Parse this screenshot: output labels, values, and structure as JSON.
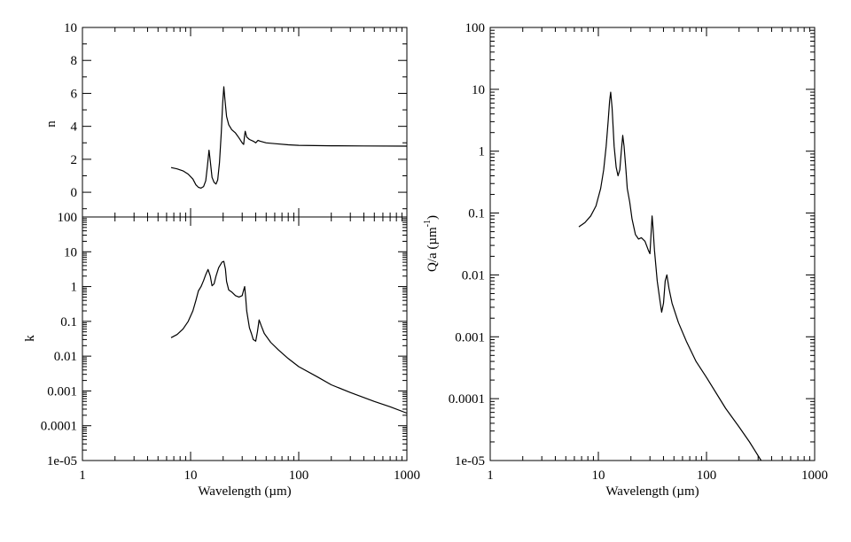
{
  "colors": {
    "background": "#ffffff",
    "line": "#000000",
    "frame": "#000000"
  },
  "chart_data": [
    {
      "id": "n-panel",
      "type": "line",
      "title": "",
      "xlabel": "",
      "ylabel": "n",
      "x_scale": "log",
      "y_scale": "linear",
      "xlim": [
        1,
        1000
      ],
      "ylim": [
        -1.5,
        10
      ],
      "y_ticks": [
        {
          "v": 0,
          "label": "0"
        },
        {
          "v": 2,
          "label": "2"
        },
        {
          "v": 4,
          "label": "4"
        },
        {
          "v": 6,
          "label": "6"
        },
        {
          "v": 8,
          "label": "8"
        },
        {
          "v": 10,
          "label": "10"
        }
      ],
      "x_ticks": [],
      "grid": false,
      "series": [
        {
          "points": [
            [
              6.6,
              1.5
            ],
            [
              7.5,
              1.42
            ],
            [
              8.5,
              1.3
            ],
            [
              9.5,
              1.1
            ],
            [
              10.5,
              0.8
            ],
            [
              11.2,
              0.45
            ],
            [
              11.8,
              0.3
            ],
            [
              12.5,
              0.25
            ],
            [
              13.2,
              0.35
            ],
            [
              13.8,
              0.7
            ],
            [
              14.3,
              1.6
            ],
            [
              14.8,
              2.55
            ],
            [
              15.2,
              1.9
            ],
            [
              15.8,
              0.9
            ],
            [
              16.5,
              0.6
            ],
            [
              17.2,
              0.5
            ],
            [
              17.8,
              0.75
            ],
            [
              18.5,
              1.8
            ],
            [
              19.2,
              3.6
            ],
            [
              19.8,
              5.4
            ],
            [
              20.3,
              6.4
            ],
            [
              20.8,
              5.6
            ],
            [
              21.5,
              4.6
            ],
            [
              22.5,
              4.1
            ],
            [
              24,
              3.8
            ],
            [
              26,
              3.6
            ],
            [
              28,
              3.3
            ],
            [
              30,
              3.0
            ],
            [
              31,
              2.9
            ],
            [
              31.5,
              3.4
            ],
            [
              32,
              3.7
            ],
            [
              33,
              3.35
            ],
            [
              35,
              3.2
            ],
            [
              38,
              3.1
            ],
            [
              40,
              3.0
            ],
            [
              42,
              3.15
            ],
            [
              44,
              3.1
            ],
            [
              50,
              3.0
            ],
            [
              60,
              2.95
            ],
            [
              80,
              2.88
            ],
            [
              100,
              2.85
            ],
            [
              200,
              2.82
            ],
            [
              400,
              2.81
            ],
            [
              1000,
              2.8
            ]
          ]
        }
      ]
    },
    {
      "id": "k-panel",
      "type": "line",
      "title": "",
      "xlabel": "Wavelength (µm)",
      "ylabel": "k",
      "x_scale": "log",
      "y_scale": "log",
      "xlim": [
        1,
        1000
      ],
      "ylim": [
        1e-05,
        100
      ],
      "y_ticks": [
        {
          "v": 1e-05,
          "label": "1e-05"
        },
        {
          "v": 0.0001,
          "label": "0.0001"
        },
        {
          "v": 0.001,
          "label": "0.001"
        },
        {
          "v": 0.01,
          "label": "0.01"
        },
        {
          "v": 0.1,
          "label": "0.1"
        },
        {
          "v": 1,
          "label": "1"
        },
        {
          "v": 10,
          "label": "10"
        },
        {
          "v": 100,
          "label": "100"
        }
      ],
      "x_ticks": [
        {
          "v": 1,
          "label": "1"
        },
        {
          "v": 10,
          "label": "10"
        },
        {
          "v": 100,
          "label": "100"
        },
        {
          "v": 1000,
          "label": "1000"
        }
      ],
      "grid": false,
      "series": [
        {
          "points": [
            [
              6.6,
              0.034
            ],
            [
              7.5,
              0.042
            ],
            [
              8.5,
              0.06
            ],
            [
              9.5,
              0.1
            ],
            [
              10.5,
              0.2
            ],
            [
              11.2,
              0.4
            ],
            [
              11.8,
              0.75
            ],
            [
              12.5,
              1.0
            ],
            [
              13.2,
              1.5
            ],
            [
              13.8,
              2.2
            ],
            [
              14.5,
              3.1
            ],
            [
              15.2,
              2.0
            ],
            [
              15.8,
              1.05
            ],
            [
              16.5,
              1.2
            ],
            [
              17.2,
              2.0
            ],
            [
              18.2,
              3.5
            ],
            [
              19.5,
              5.0
            ],
            [
              20.3,
              5.3
            ],
            [
              21,
              3.2
            ],
            [
              21.5,
              1.4
            ],
            [
              22.5,
              0.8
            ],
            [
              24,
              0.7
            ],
            [
              26,
              0.55
            ],
            [
              28,
              0.5
            ],
            [
              30,
              0.55
            ],
            [
              31,
              0.8
            ],
            [
              31.6,
              1.0
            ],
            [
              32.3,
              0.5
            ],
            [
              33,
              0.2
            ],
            [
              35,
              0.065
            ],
            [
              36.5,
              0.045
            ],
            [
              38,
              0.03
            ],
            [
              40,
              0.027
            ],
            [
              41.5,
              0.05
            ],
            [
              43,
              0.11
            ],
            [
              45,
              0.075
            ],
            [
              48,
              0.045
            ],
            [
              55,
              0.025
            ],
            [
              65,
              0.015
            ],
            [
              80,
              0.0085
            ],
            [
              100,
              0.005
            ],
            [
              150,
              0.0025
            ],
            [
              200,
              0.0015
            ],
            [
              300,
              0.0009
            ],
            [
              500,
              0.0005
            ],
            [
              700,
              0.00035
            ],
            [
              1000,
              0.00023
            ]
          ]
        }
      ]
    },
    {
      "id": "q-panel",
      "type": "line",
      "title": "",
      "xlabel": "Wavelength (µm)",
      "ylabel": "Q/a (µm",
      "ylabel_sup": "-1",
      "ylabel_close": ")",
      "x_scale": "log",
      "y_scale": "log",
      "xlim": [
        1,
        1000
      ],
      "ylim": [
        1e-05,
        100
      ],
      "y_ticks": [
        {
          "v": 1e-05,
          "label": "1e-05"
        },
        {
          "v": 0.0001,
          "label": "0.0001"
        },
        {
          "v": 0.001,
          "label": "0.001"
        },
        {
          "v": 0.01,
          "label": "0.01"
        },
        {
          "v": 0.1,
          "label": "0.1"
        },
        {
          "v": 1,
          "label": "1"
        },
        {
          "v": 10,
          "label": "10"
        },
        {
          "v": 100,
          "label": "100"
        }
      ],
      "x_ticks": [
        {
          "v": 1,
          "label": "1"
        },
        {
          "v": 10,
          "label": "10"
        },
        {
          "v": 100,
          "label": "100"
        },
        {
          "v": 1000,
          "label": "1000"
        }
      ],
      "grid": false,
      "series": [
        {
          "points": [
            [
              6.6,
              0.06
            ],
            [
              7.5,
              0.07
            ],
            [
              8.5,
              0.09
            ],
            [
              9.5,
              0.13
            ],
            [
              10.5,
              0.25
            ],
            [
              11.2,
              0.5
            ],
            [
              11.8,
              1.2
            ],
            [
              12.3,
              3.0
            ],
            [
              12.7,
              6.5
            ],
            [
              13.0,
              9.0
            ],
            [
              13.4,
              5.0
            ],
            [
              14.0,
              1.2
            ],
            [
              14.6,
              0.55
            ],
            [
              15.2,
              0.4
            ],
            [
              15.8,
              0.5
            ],
            [
              16.3,
              1.0
            ],
            [
              16.8,
              1.8
            ],
            [
              17.3,
              1.2
            ],
            [
              18,
              0.5
            ],
            [
              18.5,
              0.25
            ],
            [
              19.5,
              0.15
            ],
            [
              20.5,
              0.08
            ],
            [
              22,
              0.045
            ],
            [
              23.5,
              0.038
            ],
            [
              25,
              0.04
            ],
            [
              27,
              0.035
            ],
            [
              29,
              0.025
            ],
            [
              30,
              0.022
            ],
            [
              30.8,
              0.05
            ],
            [
              31.4,
              0.09
            ],
            [
              32,
              0.06
            ],
            [
              33,
              0.025
            ],
            [
              35,
              0.008
            ],
            [
              37,
              0.004
            ],
            [
              38.5,
              0.0025
            ],
            [
              40,
              0.0035
            ],
            [
              41.5,
              0.008
            ],
            [
              43,
              0.01
            ],
            [
              45,
              0.006
            ],
            [
              48,
              0.0035
            ],
            [
              55,
              0.0017
            ],
            [
              65,
              0.00085
            ],
            [
              80,
              0.0004
            ],
            [
              100,
              0.00022
            ],
            [
              150,
              7e-05
            ],
            [
              200,
              3.5e-05
            ],
            [
              250,
              2e-05
            ],
            [
              320,
              1e-05
            ]
          ]
        }
      ]
    }
  ]
}
